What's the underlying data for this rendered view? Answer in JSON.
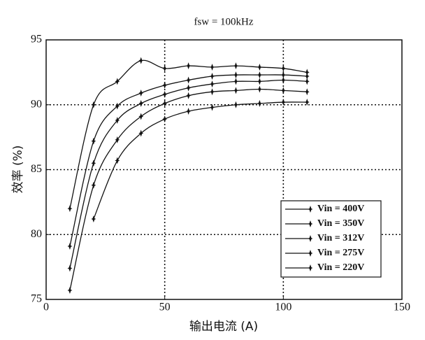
{
  "chart_data": {
    "type": "line",
    "title": "fsw = 100kHz",
    "x_label": "输出电流 (A)",
    "y_label": "效率 (%)",
    "x": [
      10,
      20,
      30,
      40,
      50,
      60,
      70,
      80,
      90,
      100,
      110
    ],
    "series": [
      {
        "name": "Vin = 400V",
        "color": "#111111",
        "values": [
          82,
          90,
          91.8,
          93.4,
          92.8,
          93,
          92.9,
          93,
          92.9,
          92.8,
          92.5
        ]
      },
      {
        "name": "Vin = 350V",
        "color": "#111111",
        "values": [
          79.1,
          87.2,
          89.9,
          90.9,
          91.5,
          91.9,
          92.2,
          92.3,
          92.3,
          92.3,
          92.2
        ]
      },
      {
        "name": "Vin = 312V",
        "color": "#111111",
        "values": [
          77.4,
          85.5,
          88.8,
          90.1,
          90.8,
          91.3,
          91.6,
          91.8,
          91.8,
          91.9,
          91.8
        ]
      },
      {
        "name": "Vin = 275V",
        "color": "#111111",
        "values": [
          75.7,
          83.8,
          87.3,
          89.1,
          90.1,
          90.7,
          91,
          91.1,
          91.2,
          91.1,
          91
        ]
      },
      {
        "name": "Vin = 220V",
        "color": "#111111",
        "values": [
          null,
          81.2,
          85.7,
          87.8,
          88.9,
          89.5,
          89.8,
          90,
          90.1,
          90.2,
          90.2
        ]
      }
    ],
    "xlim": [
      0,
      150
    ],
    "ylim": [
      75,
      95
    ],
    "xticks": [
      0,
      50,
      100,
      150
    ],
    "yticks": [
      75,
      80,
      85,
      90,
      95
    ],
    "grid": true,
    "legend": "lower right"
  }
}
